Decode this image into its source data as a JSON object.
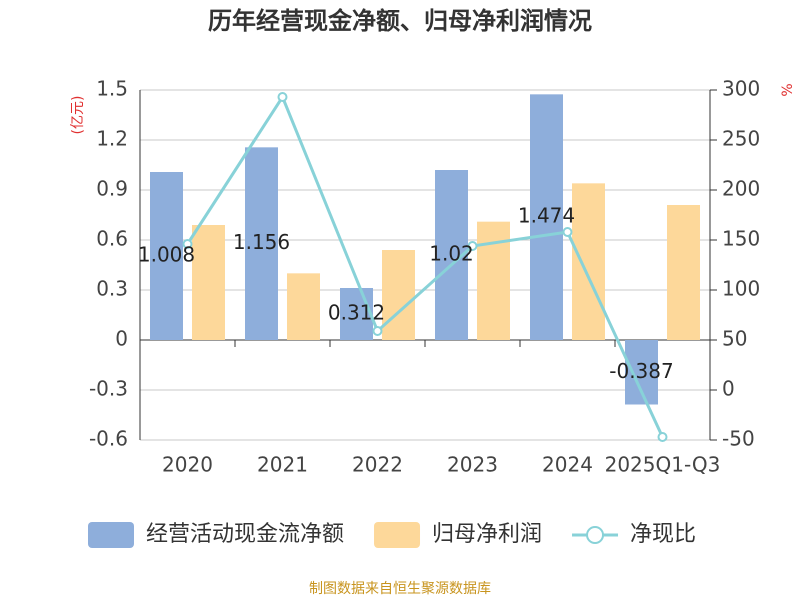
{
  "chart_data": {
    "type": "bar",
    "title": "历年经营现金净额、归母净利润情况",
    "y_label": "(亿元)",
    "y2_label": "%",
    "source": "制图数据来自恒生聚源数据库",
    "categories": [
      "2020",
      "2021",
      "2022",
      "2023",
      "2024",
      "2025Q1-Q3"
    ],
    "series": [
      {
        "name": "经营活动现金流净额",
        "type": "bar",
        "color": "#8eaedb",
        "values": [
          1.008,
          1.156,
          0.312,
          1.02,
          1.474,
          -0.387
        ],
        "show_labels": true
      },
      {
        "name": "归母净利润",
        "type": "bar",
        "color": "#fdd89a",
        "values": [
          0.69,
          0.4,
          0.54,
          0.71,
          0.94,
          0.81
        ]
      },
      {
        "name": "净现比",
        "type": "line",
        "axis": "y2",
        "color": "#88d2d8",
        "values": [
          146,
          293,
          59,
          144,
          158,
          -47
        ]
      }
    ],
    "ylim": [
      -0.6,
      1.5
    ],
    "yticks": [
      -0.6,
      -0.3,
      0,
      0.3,
      0.6,
      0.9,
      1.2,
      1.5
    ],
    "y2lim": [
      -50,
      300
    ],
    "y2ticks": [
      -50,
      0,
      50,
      100,
      150,
      200,
      250,
      300
    ],
    "grid": true
  }
}
